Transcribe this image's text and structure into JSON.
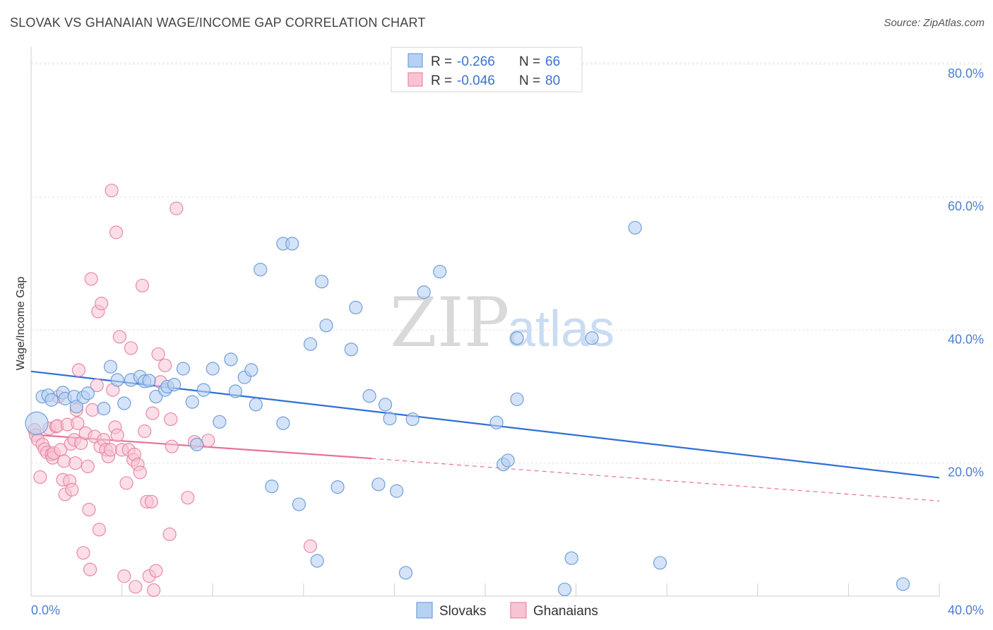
{
  "title": "SLOVAK VS GHANAIAN WAGE/INCOME GAP CORRELATION CHART",
  "source": "Source: ZipAtlas.com",
  "watermark": {
    "part1": "ZIP",
    "part2": "atlas"
  },
  "legend": {
    "items": [
      {
        "r_label": "R =",
        "r_value": "-0.266",
        "n_label": "N =",
        "n_value": "66"
      },
      {
        "r_label": "R =",
        "r_value": "-0.046",
        "n_label": "N =",
        "n_value": "80"
      }
    ]
  },
  "bottom_legend": [
    "Slovaks",
    "Ghanaians"
  ],
  "chart_data": {
    "type": "scatter",
    "title": "SLOVAK VS GHANAIAN WAGE/INCOME GAP CORRELATION CHART",
    "xlabel": "",
    "ylabel": "Wage/Income Gap",
    "xlim": [
      0,
      40
    ],
    "ylim": [
      0,
      82
    ],
    "x_tick_labels": [
      "0.0%",
      "40.0%"
    ],
    "y_ticks": [
      20,
      40,
      60,
      80
    ],
    "y_tick_labels": [
      "20.0%",
      "40.0%",
      "60.0%",
      "80.0%"
    ],
    "grid": true,
    "legend_position": "top-center",
    "colors": {
      "slovaks_fill": "#b7d1f2",
      "slovaks_stroke": "#6f9fdb",
      "slovaks_line": "#2f6fd6",
      "ghanaians_fill": "#f8c3d3",
      "ghanaians_stroke": "#e88aa7",
      "ghanaians_line": "#e8709a"
    },
    "series": [
      {
        "name": "Slovaks",
        "r": -0.266,
        "n": 66,
        "trend": {
          "x": [
            0,
            40
          ],
          "y": [
            33.8,
            17.8
          ]
        },
        "points": [
          [
            0.25,
            26.0
          ],
          [
            0.5,
            30.0
          ],
          [
            0.75,
            30.2
          ],
          [
            0.9,
            29.5
          ],
          [
            1.4,
            30.6
          ],
          [
            1.5,
            29.7
          ],
          [
            1.9,
            30.0
          ],
          [
            2.0,
            28.5
          ],
          [
            2.3,
            29.9
          ],
          [
            2.5,
            30.5
          ],
          [
            3.2,
            28.2
          ],
          [
            3.5,
            34.5
          ],
          [
            3.8,
            32.5
          ],
          [
            4.1,
            29.0
          ],
          [
            4.4,
            32.5
          ],
          [
            4.8,
            33.0
          ],
          [
            5.0,
            32.3
          ],
          [
            5.2,
            32.4
          ],
          [
            5.5,
            30.0
          ],
          [
            5.9,
            31.0
          ],
          [
            6.0,
            31.5
          ],
          [
            6.3,
            31.8
          ],
          [
            6.7,
            34.2
          ],
          [
            7.1,
            29.2
          ],
          [
            7.3,
            22.8
          ],
          [
            7.6,
            31.0
          ],
          [
            8.0,
            34.2
          ],
          [
            8.3,
            26.2
          ],
          [
            8.8,
            35.6
          ],
          [
            9.0,
            30.8
          ],
          [
            9.4,
            32.9
          ],
          [
            9.7,
            34.0
          ],
          [
            9.9,
            28.8
          ],
          [
            10.1,
            49.1
          ],
          [
            10.6,
            16.5
          ],
          [
            11.1,
            26.0
          ],
          [
            11.1,
            53.0
          ],
          [
            11.5,
            53.0
          ],
          [
            11.8,
            13.8
          ],
          [
            12.3,
            37.9
          ],
          [
            12.6,
            5.3
          ],
          [
            12.8,
            47.3
          ],
          [
            13.0,
            40.7
          ],
          [
            13.5,
            16.4
          ],
          [
            14.1,
            37.1
          ],
          [
            14.3,
            43.4
          ],
          [
            14.9,
            30.1
          ],
          [
            15.3,
            16.8
          ],
          [
            15.6,
            28.8
          ],
          [
            15.8,
            26.7
          ],
          [
            16.1,
            15.8
          ],
          [
            16.5,
            3.5
          ],
          [
            16.8,
            26.6
          ],
          [
            17.3,
            45.7
          ],
          [
            18.0,
            48.8
          ],
          [
            20.5,
            26.1
          ],
          [
            20.8,
            19.8
          ],
          [
            21.0,
            20.4
          ],
          [
            21.4,
            29.6
          ],
          [
            21.4,
            38.8
          ],
          [
            23.5,
            1.0
          ],
          [
            23.8,
            5.7
          ],
          [
            24.7,
            38.8
          ],
          [
            26.6,
            55.4
          ],
          [
            27.7,
            5.0
          ],
          [
            38.4,
            1.8
          ]
        ]
      },
      {
        "name": "Ghanaians",
        "r": -0.046,
        "n": 80,
        "trend": {
          "x": [
            0,
            15
          ],
          "y": [
            24.3,
            20.7
          ]
        },
        "trend_dashed": {
          "x": [
            15,
            40
          ],
          "y": [
            20.7,
            14.3
          ]
        },
        "points": [
          [
            0.15,
            25.0
          ],
          [
            0.2,
            24.2
          ],
          [
            0.3,
            23.5
          ],
          [
            0.4,
            17.9
          ],
          [
            0.5,
            22.8
          ],
          [
            0.6,
            22.1
          ],
          [
            0.7,
            21.6
          ],
          [
            0.8,
            25.2
          ],
          [
            0.9,
            21.3
          ],
          [
            0.95,
            20.8
          ],
          [
            1.0,
            21.5
          ],
          [
            1.1,
            25.5
          ],
          [
            1.15,
            25.6
          ],
          [
            1.2,
            30.0
          ],
          [
            1.3,
            22.0
          ],
          [
            1.4,
            17.5
          ],
          [
            1.45,
            20.3
          ],
          [
            1.5,
            15.3
          ],
          [
            1.6,
            25.8
          ],
          [
            1.7,
            17.3
          ],
          [
            1.75,
            22.9
          ],
          [
            1.8,
            16.0
          ],
          [
            1.9,
            23.5
          ],
          [
            1.95,
            20.0
          ],
          [
            2.0,
            28.0
          ],
          [
            2.05,
            26.0
          ],
          [
            2.1,
            34.0
          ],
          [
            2.2,
            23.0
          ],
          [
            2.3,
            6.5
          ],
          [
            2.4,
            24.5
          ],
          [
            2.5,
            19.5
          ],
          [
            2.55,
            13.0
          ],
          [
            2.6,
            4.0
          ],
          [
            2.65,
            47.7
          ],
          [
            2.7,
            28.0
          ],
          [
            2.8,
            24.0
          ],
          [
            2.9,
            31.7
          ],
          [
            2.95,
            42.8
          ],
          [
            3.0,
            10.0
          ],
          [
            3.05,
            22.5
          ],
          [
            3.1,
            44.0
          ],
          [
            3.2,
            23.5
          ],
          [
            3.3,
            22.0
          ],
          [
            3.4,
            21.0
          ],
          [
            3.5,
            22.0
          ],
          [
            3.55,
            61.0
          ],
          [
            3.6,
            31.0
          ],
          [
            3.7,
            25.4
          ],
          [
            3.75,
            54.7
          ],
          [
            3.8,
            24.2
          ],
          [
            3.9,
            39.0
          ],
          [
            4.0,
            22.0
          ],
          [
            4.1,
            3.0
          ],
          [
            4.2,
            17.0
          ],
          [
            4.3,
            22.0
          ],
          [
            4.4,
            37.3
          ],
          [
            4.5,
            20.5
          ],
          [
            4.55,
            21.3
          ],
          [
            4.6,
            1.4
          ],
          [
            4.7,
            19.8
          ],
          [
            4.8,
            18.6
          ],
          [
            4.9,
            46.7
          ],
          [
            5.0,
            24.8
          ],
          [
            5.1,
            14.2
          ],
          [
            5.2,
            3.0
          ],
          [
            5.3,
            14.2
          ],
          [
            5.35,
            27.5
          ],
          [
            5.4,
            0.9
          ],
          [
            5.5,
            3.8
          ],
          [
            5.6,
            36.4
          ],
          [
            5.7,
            32.2
          ],
          [
            5.9,
            34.7
          ],
          [
            6.1,
            9.3
          ],
          [
            6.15,
            26.6
          ],
          [
            6.2,
            22.5
          ],
          [
            6.4,
            58.3
          ],
          [
            6.9,
            14.8
          ],
          [
            7.2,
            23.2
          ],
          [
            12.3,
            7.5
          ],
          [
            7.8,
            23.4
          ]
        ]
      }
    ]
  }
}
